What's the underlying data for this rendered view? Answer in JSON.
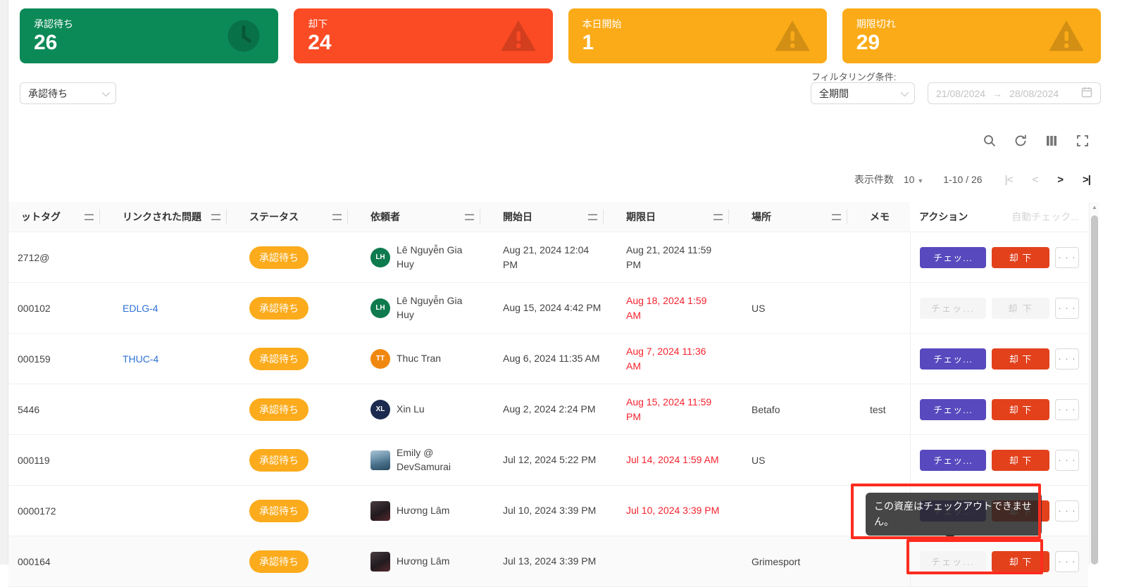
{
  "cards": [
    {
      "label": "承認待ち",
      "value": "26",
      "color": "#0b8a57",
      "icon": "clock-icon"
    },
    {
      "label": "却下",
      "value": "24",
      "color": "#fb4b24",
      "icon": "warning-icon"
    },
    {
      "label": "本日開始",
      "value": "1",
      "color": "#fbab18",
      "icon": "warning-icon"
    },
    {
      "label": "期限切れ",
      "value": "29",
      "color": "#fbab18",
      "icon": "warning-icon"
    }
  ],
  "filters": {
    "status_value": "承認待ち",
    "label": "フィルタリング条件:",
    "period_value": "全期間",
    "date_from": "21/08/2024",
    "date_arrow": "→",
    "date_to": "28/08/2024"
  },
  "pagination": {
    "size_label": "表示件数",
    "size_value": "10",
    "size_caret": "▼",
    "range": "1-10 / 26",
    "first": "|<",
    "prev": "<",
    "next": ">",
    "last": ">|"
  },
  "actions": {
    "checkout": "チェッ...",
    "reject": "却 下",
    "more": "· · ·"
  },
  "tooltip": {
    "text": "この資産はチェックアウトできません。"
  },
  "table": {
    "headers": {
      "asset": "ットタグ",
      "issue": "リンクされた問題",
      "status": "ステータス",
      "requester": "依頼者",
      "start": "開始日",
      "due": "期限日",
      "location": "場所",
      "memo": "メモ",
      "action": "アクション",
      "hidden": "自動チェック..."
    },
    "rows": [
      {
        "asset": "2712@",
        "issue": "",
        "status": "承認待ち",
        "requester": "Lê Nguyễn Gia\nHuy",
        "avatar": {
          "type": "initials",
          "text": "LH",
          "color": "#0e7a4e"
        },
        "start": "Aug 21, 2024 12:04\nPM",
        "due": "Aug 21, 2024 11:59\nPM",
        "due_overdue": false,
        "location": "",
        "memo": "",
        "checkout_disabled": false,
        "reject_disabled": false,
        "hover": false
      },
      {
        "asset": "000102",
        "issue": "EDLG-4",
        "status": "承認待ち",
        "requester": "Lê Nguyễn Gia\nHuy",
        "avatar": {
          "type": "initials",
          "text": "LH",
          "color": "#0e7a4e"
        },
        "start": "Aug 15, 2024 4:42 PM",
        "due": "Aug 18, 2024 1:59\nAM",
        "due_overdue": true,
        "location": "US",
        "memo": "",
        "checkout_disabled": true,
        "reject_disabled": true,
        "hover": false
      },
      {
        "asset": "000159",
        "issue": "THUC-4",
        "status": "承認待ち",
        "requester": "Thuc Tran",
        "avatar": {
          "type": "initials",
          "text": "TT",
          "color": "#f0880f"
        },
        "start": "Aug 6, 2024 11:35 AM",
        "due": "Aug 7, 2024 11:36\nAM",
        "due_overdue": true,
        "location": "",
        "memo": "",
        "checkout_disabled": false,
        "reject_disabled": false,
        "hover": false
      },
      {
        "asset": "5446",
        "issue": "",
        "status": "承認待ち",
        "requester": "Xin Lu",
        "avatar": {
          "type": "initials",
          "text": "XL",
          "color": "#1b2a4e"
        },
        "start": "Aug 2, 2024 2:24 PM",
        "due": "Aug 15, 2024 11:59\nPM",
        "due_overdue": true,
        "location": "Betafo",
        "memo": "test",
        "checkout_disabled": false,
        "reject_disabled": false,
        "hover": false
      },
      {
        "asset": "000119",
        "issue": "",
        "status": "承認待ち",
        "requester": "Emily @\nDevSamurai",
        "avatar": {
          "type": "photo",
          "class": "photo-emily"
        },
        "start": "Jul 12, 2024 5:22 PM",
        "due": "Jul 14, 2024 1:59 AM",
        "due_overdue": true,
        "location": "US",
        "memo": "",
        "checkout_disabled": false,
        "reject_disabled": false,
        "hover": false
      },
      {
        "asset": "0000172",
        "issue": "",
        "status": "承認待ち",
        "requester": "Hương Lâm",
        "avatar": {
          "type": "photo",
          "class": "photo-huong"
        },
        "start": "Jul 10, 2024 3:39 PM",
        "due": "Jul 10, 2024 3:39 PM",
        "due_overdue": true,
        "location": "",
        "memo": "",
        "checkout_disabled": false,
        "reject_disabled": false,
        "hover": false
      },
      {
        "asset": "000164",
        "issue": "",
        "status": "承認待ち",
        "requester": "Hương Lâm",
        "avatar": {
          "type": "photo",
          "class": "photo-huong"
        },
        "start": "Jul 13, 2024 3:39 PM",
        "due": "",
        "due_overdue": false,
        "location": "Grimesport",
        "memo": "",
        "checkout_disabled": true,
        "reject_disabled": false,
        "hover": true
      }
    ]
  }
}
